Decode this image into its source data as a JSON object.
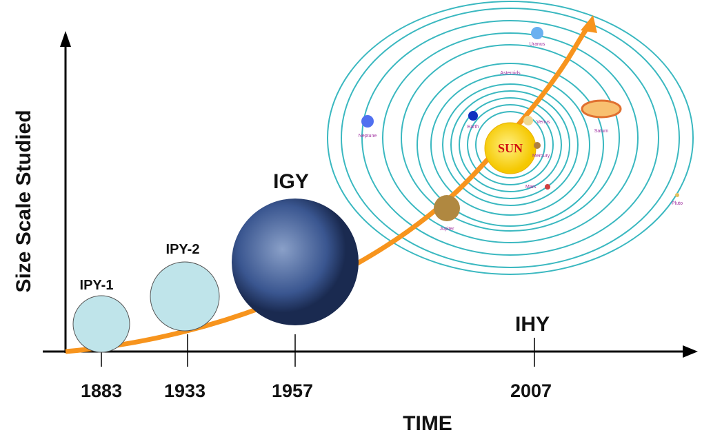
{
  "axes": {
    "y_label": "Size Scale Studied",
    "x_label": "TIME"
  },
  "timeline": [
    {
      "year": "1883",
      "program": "IPY-1"
    },
    {
      "year": "1933",
      "program": "IPY-2"
    },
    {
      "year": "1957",
      "program": "IGY"
    },
    {
      "year": "2007",
      "program": "IHY"
    }
  ],
  "solar_system": {
    "sun": "SUN",
    "planets": [
      "Uranus",
      "Asteroids",
      "Earth",
      "Venus",
      "Saturn",
      "Neptune",
      "Mercury",
      "Mars",
      "Pluto",
      "Jupiter"
    ]
  }
}
